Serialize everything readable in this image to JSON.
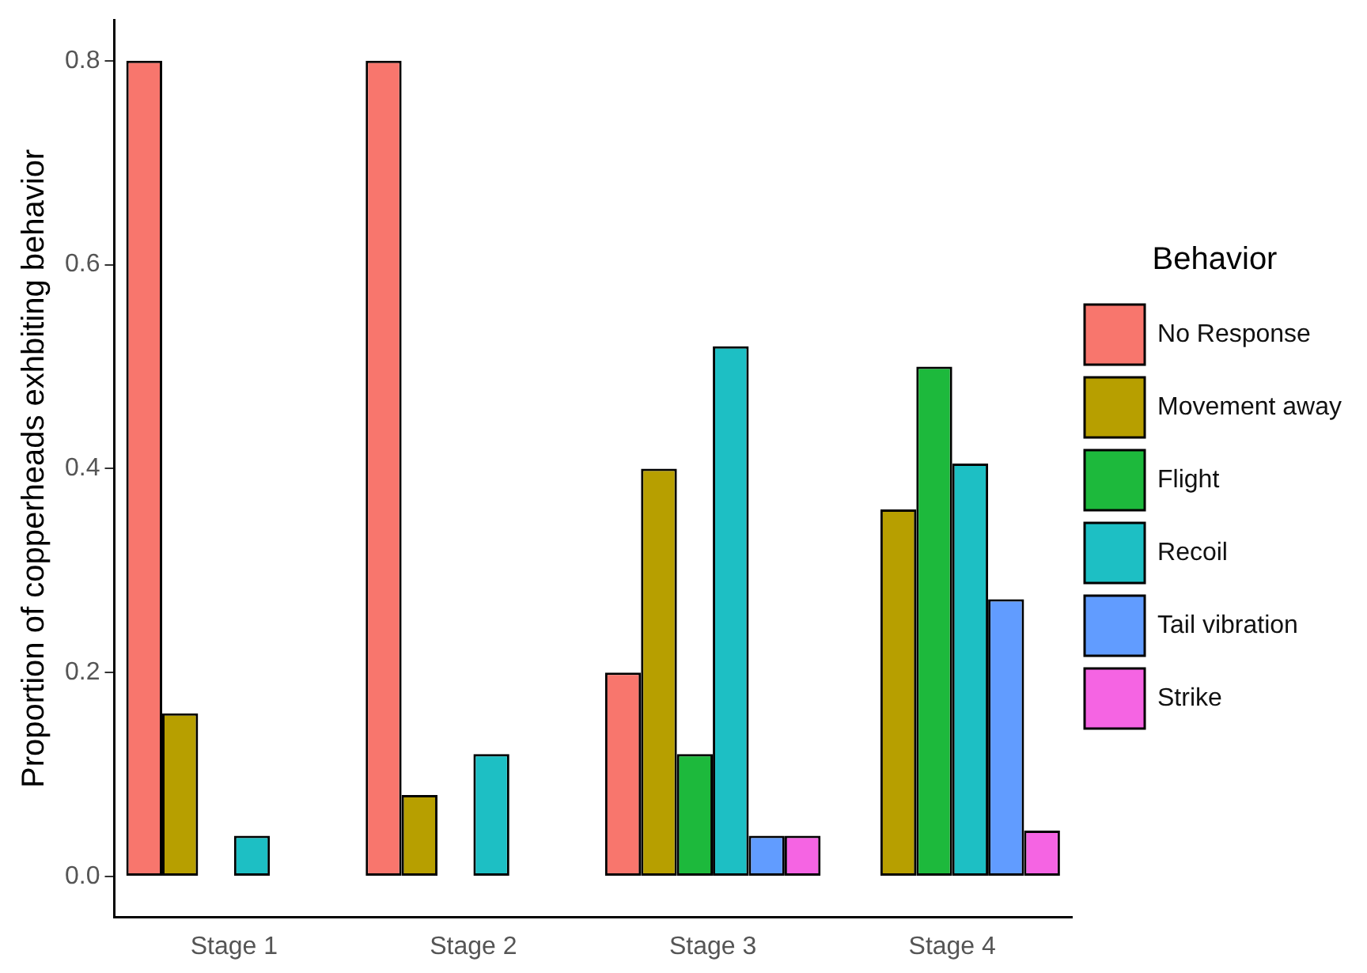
{
  "chart_data": {
    "type": "bar",
    "ylabel": "Proportion of copperheads exhbiting behavior",
    "legend_title": "Behavior",
    "legend": "right",
    "grid": false,
    "categories": [
      "Stage 1",
      "Stage 2",
      "Stage 3",
      "Stage 4"
    ],
    "ylim": [
      -0.04,
      0.84
    ],
    "yticks": [
      {
        "value": 0,
        "label": "0.0"
      },
      0.2,
      0.4,
      0.6,
      0.8
    ],
    "series": [
      {
        "name": "No Response",
        "color": "#f8766d",
        "values": [
          0.8,
          0.8,
          0.2,
          0
        ]
      },
      {
        "name": "Movement away",
        "color": "#b79f00",
        "values": [
          0.16,
          0.08,
          0.4,
          0.36
        ]
      },
      {
        "name": "Flight",
        "color": "#1db93c",
        "values": [
          0,
          0,
          0.12,
          0.5
        ]
      },
      {
        "name": "Recoil",
        "color": "#1dbfc4",
        "values": [
          0.04,
          0.12,
          0.52,
          0.405
        ]
      },
      {
        "name": "Tail vibration",
        "color": "#619cff",
        "values": [
          0,
          0,
          0.04,
          0.272
        ]
      },
      {
        "name": "Strike",
        "color": "#f564e3",
        "values": [
          0,
          0,
          0.04,
          0.045
        ]
      }
    ]
  }
}
